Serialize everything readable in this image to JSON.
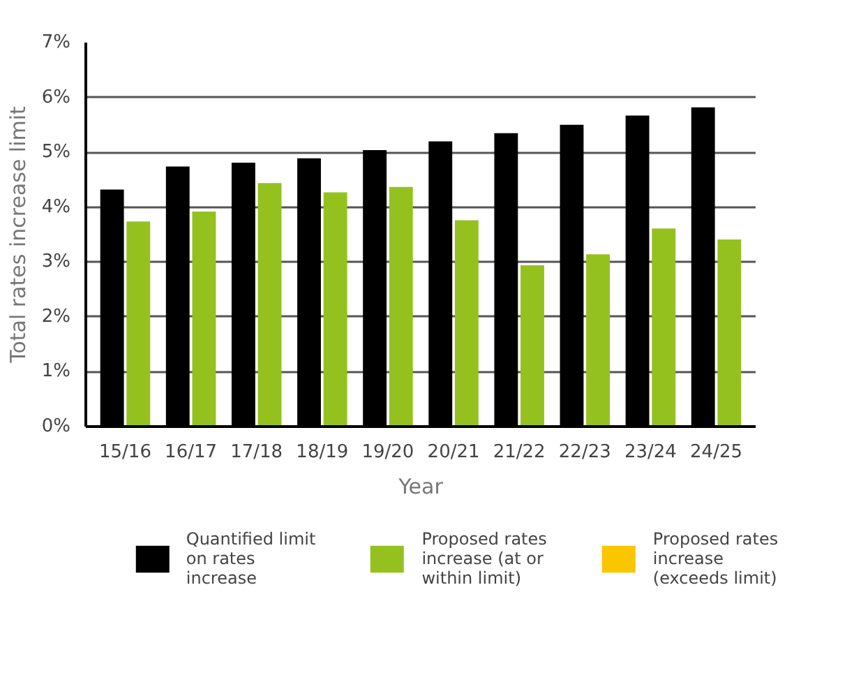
{
  "chart_data": {
    "type": "bar",
    "xlabel": "Year",
    "ylabel": "Total rates increase limit",
    "categories": [
      "15/16",
      "16/17",
      "17/18",
      "18/19",
      "19/20",
      "20/21",
      "21/22",
      "22/23",
      "23/24",
      "24/25"
    ],
    "series": [
      {
        "name": "Quantified limit on rates increase",
        "color": "#000000",
        "values": [
          4.32,
          4.74,
          4.81,
          4.89,
          5.04,
          5.2,
          5.35,
          5.5,
          5.67,
          5.82
        ]
      },
      {
        "name": "Proposed rates increase (at or within limit)",
        "color": "#95c11f",
        "values": [
          3.74,
          3.92,
          4.44,
          4.27,
          4.37,
          3.76,
          2.94,
          3.14,
          3.61,
          3.41
        ]
      },
      {
        "name": "Proposed rates increase (exceeds limit)",
        "color": "#f9c600",
        "values": [
          null,
          null,
          null,
          null,
          null,
          null,
          null,
          null,
          null,
          null
        ]
      }
    ],
    "ylim": [
      0,
      7
    ],
    "yticks": [
      {
        "value": 0,
        "label": "0%"
      },
      {
        "value": 1,
        "label": "1%"
      },
      {
        "value": 2,
        "label": "2%"
      },
      {
        "value": 3,
        "label": "3%"
      },
      {
        "value": 4,
        "label": "4%"
      },
      {
        "value": 5,
        "label": "5%"
      },
      {
        "value": 6,
        "label": "6%"
      },
      {
        "value": 7,
        "label": "7%"
      }
    ],
    "grid": "y",
    "legend": "bottom"
  }
}
